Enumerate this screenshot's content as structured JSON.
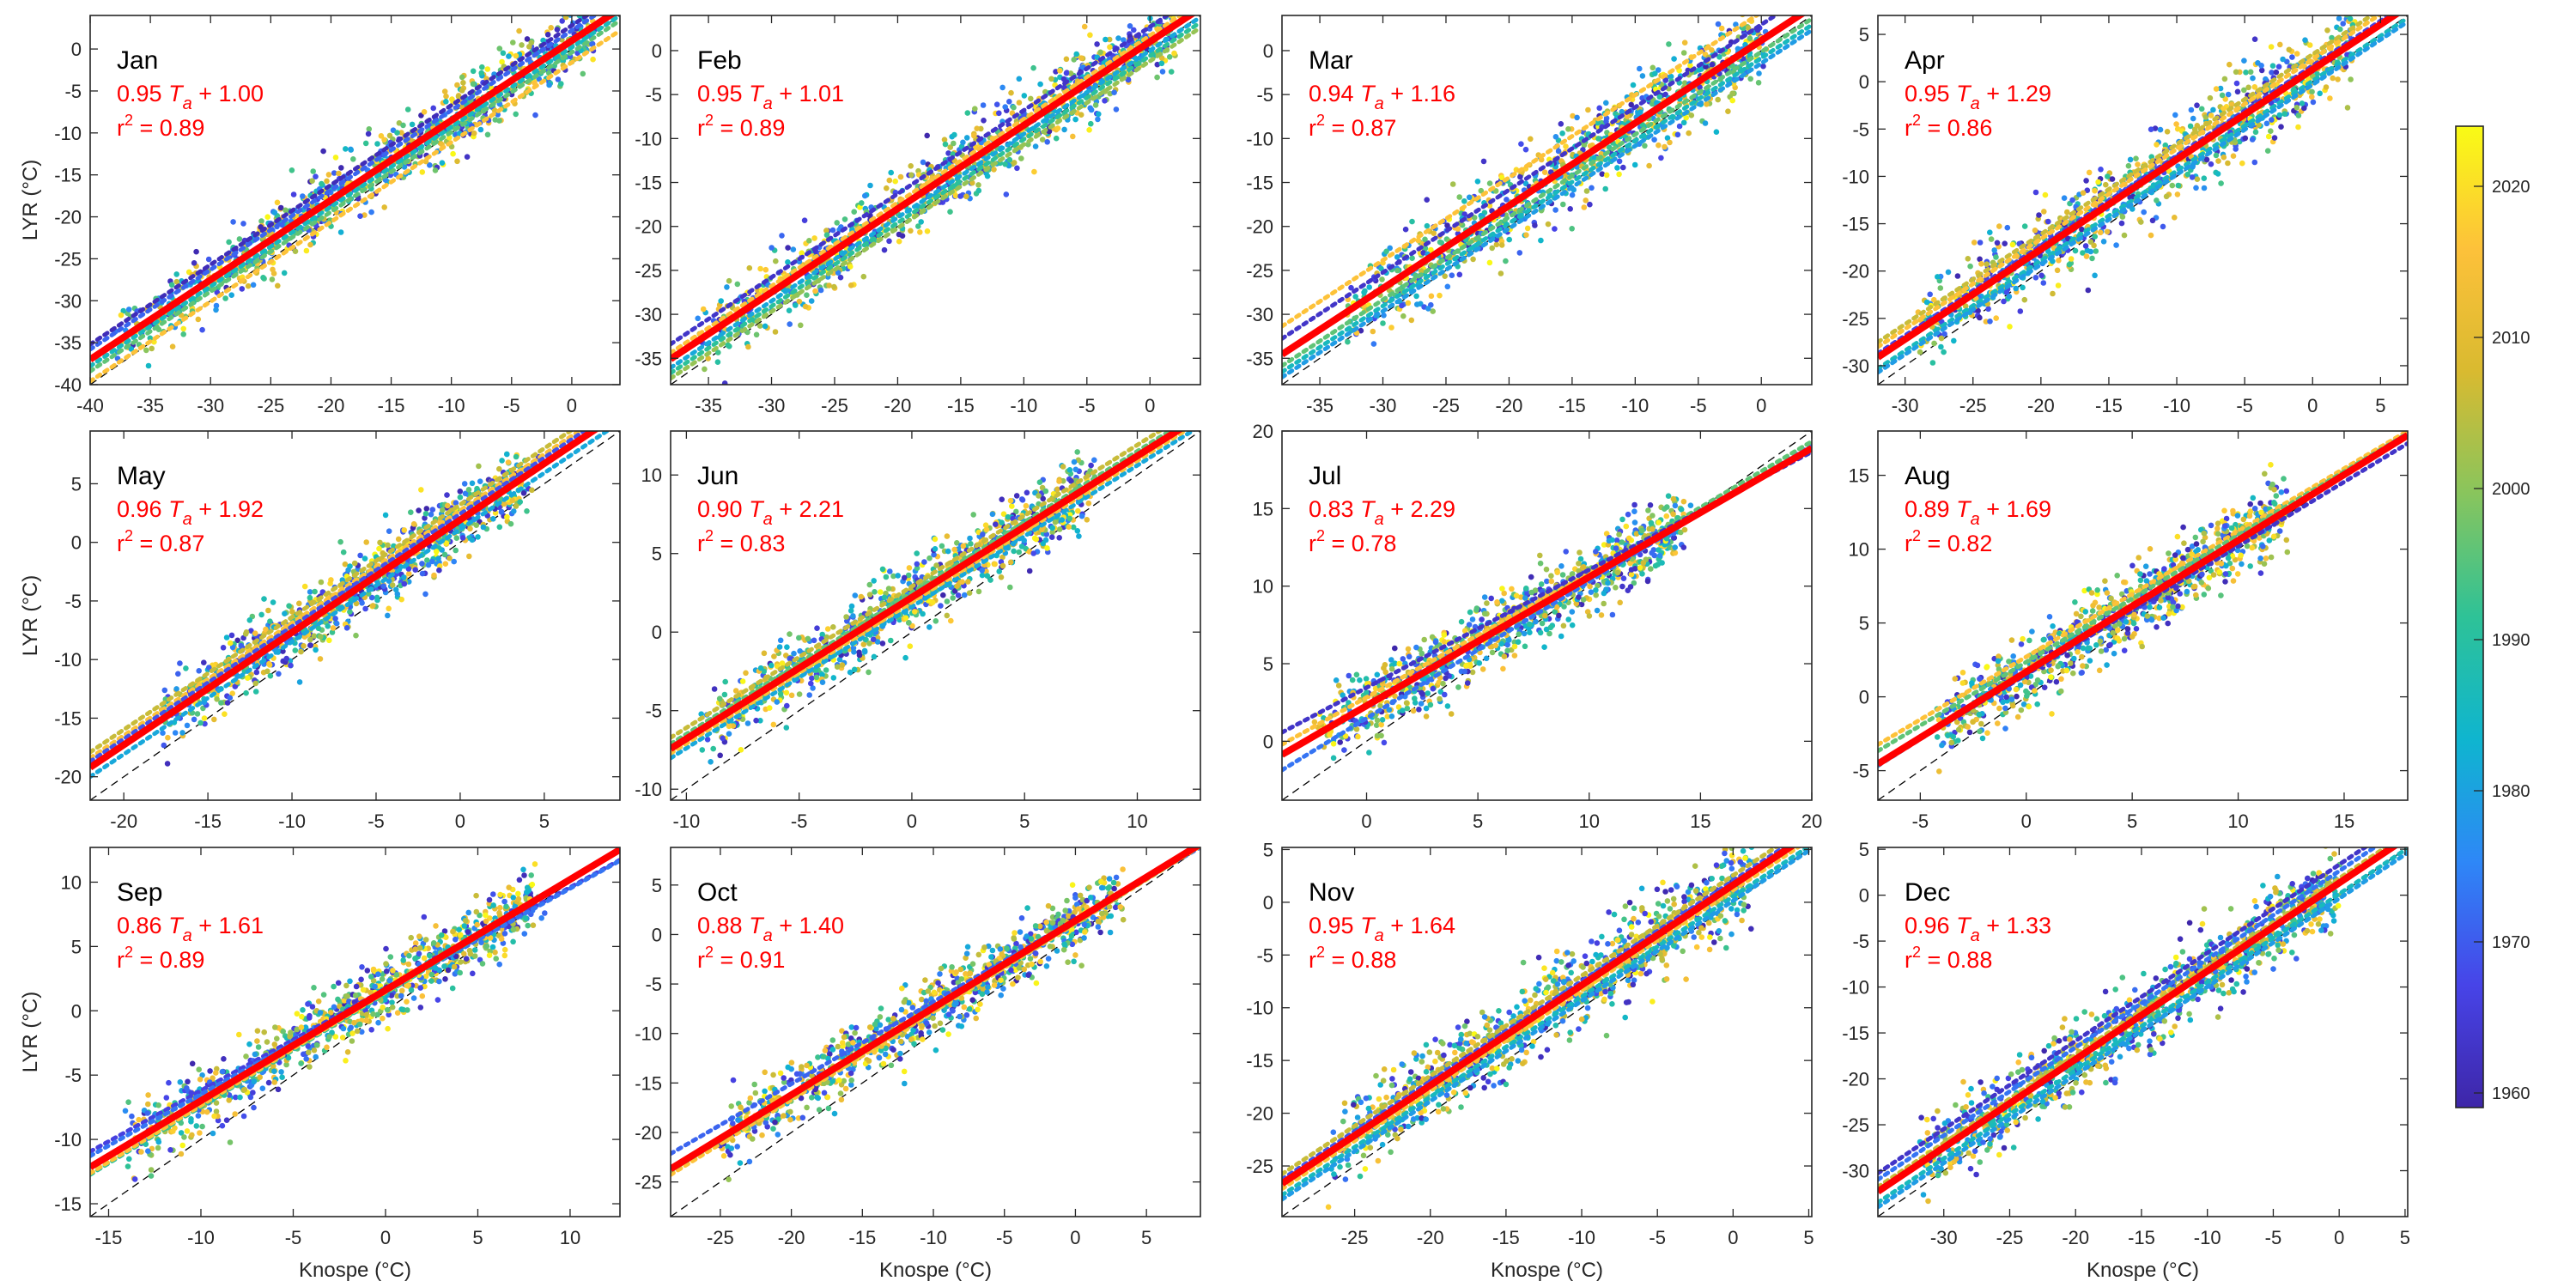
{
  "chart_data": {
    "type": "scatter",
    "title": "",
    "xlabel": "Knospe (°C)",
    "ylabel": "LYR (°C)",
    "layout": "3x4 grid of monthly scatter panels with shared colorbar on the right",
    "reference_line": "1:1 dashed black line",
    "regression_line_color": "#ff0000",
    "per_decade_fit_lines": "dotted, colored by decade",
    "colorbar": {
      "label": "",
      "range": [
        1958,
        2023
      ],
      "ticks": [
        1960,
        1970,
        1980,
        1990,
        2000,
        2010,
        2020
      ],
      "colormap": "parula",
      "colormap_stops": [
        "#3e26a8",
        "#4744e8",
        "#2e87f7",
        "#0fb5cf",
        "#2ec297",
        "#88c55d",
        "#d9ba30",
        "#fdc13a",
        "#f9fb15"
      ]
    },
    "panels": [
      {
        "month": "Jan",
        "slope": 0.95,
        "intercept": 1.0,
        "r2": 0.89,
        "eq_text": "0.95 T",
        "eq_sub": "a",
        "eq_rest": " + 1.00",
        "r2_text": "= 0.89",
        "xlim": [
          -40,
          4
        ],
        "ylim": [
          -40,
          4
        ],
        "xticks": [
          -40,
          -35,
          -30,
          -25,
          -20,
          -15,
          -10,
          -5,
          0
        ],
        "yticks": [
          -40,
          -35,
          -30,
          -25,
          -20,
          -15,
          -10,
          -5,
          0
        ],
        "scatter_x_range": [
          -38,
          2
        ],
        "scatter_spread": 2.2,
        "decade_lines": [
          {
            "year": 1960,
            "dy": 1.8
          },
          {
            "year": 1970,
            "dy": 1.2
          },
          {
            "year": 1985,
            "dy": -0.8
          },
          {
            "year": 1995,
            "dy": -1.4
          },
          {
            "year": 2015,
            "dy": -2.6
          }
        ]
      },
      {
        "month": "Feb",
        "slope": 0.95,
        "intercept": 1.01,
        "r2": 0.89,
        "eq_text": "0.95 T",
        "eq_sub": "a",
        "eq_rest": " + 1.01",
        "r2_text": "= 0.89",
        "xlim": [
          -38,
          4
        ],
        "ylim": [
          -38,
          4
        ],
        "xticks": [
          -35,
          -30,
          -25,
          -20,
          -15,
          -10,
          -5,
          0
        ],
        "yticks": [
          -35,
          -30,
          -25,
          -20,
          -15,
          -10,
          -5,
          0
        ],
        "scatter_x_range": [
          -36,
          2
        ],
        "scatter_spread": 2.2,
        "decade_lines": [
          {
            "year": 1962,
            "dy": 1.7
          },
          {
            "year": 2015,
            "dy": 0.7
          },
          {
            "year": 1980,
            "dy": -1.0
          },
          {
            "year": 1990,
            "dy": -1.6
          },
          {
            "year": 2000,
            "dy": -2.2
          }
        ]
      },
      {
        "month": "Mar",
        "slope": 0.94,
        "intercept": 1.16,
        "r2": 0.87,
        "eq_text": "0.94 T",
        "eq_sub": "a",
        "eq_rest": " + 1.16",
        "r2_text": "= 0.87",
        "xlim": [
          -38,
          4
        ],
        "ylim": [
          -38,
          4
        ],
        "xticks": [
          -35,
          -30,
          -25,
          -20,
          -15,
          -10,
          -5,
          0
        ],
        "yticks": [
          -35,
          -30,
          -25,
          -20,
          -15,
          -10,
          -5,
          0
        ],
        "scatter_x_range": [
          -33,
          0
        ],
        "scatter_spread": 2.3,
        "decade_lines": [
          {
            "year": 2015,
            "dy": 3.2
          },
          {
            "year": 1962,
            "dy": 1.8
          },
          {
            "year": 1995,
            "dy": -1.3
          },
          {
            "year": 1985,
            "dy": -2.0
          },
          {
            "year": 1978,
            "dy": -2.6
          }
        ]
      },
      {
        "month": "Apr",
        "slope": 0.95,
        "intercept": 1.29,
        "r2": 0.86,
        "eq_text": "0.95 T",
        "eq_sub": "a",
        "eq_rest": " + 1.29",
        "r2_text": "= 0.86",
        "xlim": [
          -32,
          7
        ],
        "ylim": [
          -32,
          7
        ],
        "xticks": [
          -30,
          -25,
          -20,
          -15,
          -10,
          -5,
          0,
          5
        ],
        "yticks": [
          -30,
          -25,
          -20,
          -15,
          -10,
          -5,
          0,
          5
        ],
        "scatter_x_range": [
          -29,
          3
        ],
        "scatter_spread": 2.2,
        "decade_lines": [
          {
            "year": 2005,
            "dy": 1.6
          },
          {
            "year": 2015,
            "dy": 1.1
          },
          {
            "year": 1965,
            "dy": 0.4
          },
          {
            "year": 1985,
            "dy": -1.2
          },
          {
            "year": 1978,
            "dy": -1.6
          }
        ]
      },
      {
        "month": "May",
        "slope": 0.96,
        "intercept": 1.92,
        "r2": 0.87,
        "eq_text": "0.96 T",
        "eq_sub": "a",
        "eq_rest": " + 1.92",
        "r2_text": "= 0.87",
        "xlim": [
          -22,
          9.5
        ],
        "ylim": [
          -22,
          9.5
        ],
        "xticks": [
          -20,
          -15,
          -10,
          -5,
          0,
          5
        ],
        "yticks": [
          -20,
          -15,
          -10,
          -5,
          0,
          5
        ],
        "scatter_x_range": [
          -18,
          4
        ],
        "scatter_spread": 1.5,
        "decade_lines": [
          {
            "year": 2005,
            "dy": 1.3
          },
          {
            "year": 2015,
            "dy": 0.8
          },
          {
            "year": 1968,
            "dy": 0.5
          },
          {
            "year": 1980,
            "dy": -0.8
          }
        ]
      },
      {
        "month": "Jun",
        "slope": 0.9,
        "intercept": 2.21,
        "r2": 0.83,
        "eq_text": "0.90 T",
        "eq_sub": "a",
        "eq_rest": " + 2.21",
        "r2_text": "= 0.83",
        "xlim": [
          -10.7,
          12.8
        ],
        "ylim": [
          -10.7,
          12.8
        ],
        "xticks": [
          -10,
          -5,
          0,
          5,
          10
        ],
        "yticks": [
          -10,
          -5,
          0,
          5,
          10
        ],
        "scatter_x_range": [
          -9,
          8
        ],
        "scatter_spread": 1.1,
        "decade_lines": [
          {
            "year": 2005,
            "dy": 0.7
          },
          {
            "year": 1995,
            "dy": 0.3
          },
          {
            "year": 1980,
            "dy": -0.6
          },
          {
            "year": 2015,
            "dy": -0.3
          }
        ]
      },
      {
        "month": "Jul",
        "slope": 0.83,
        "intercept": 2.29,
        "r2": 0.78,
        "eq_text": "0.83 T",
        "eq_sub": "a",
        "eq_rest": " + 2.29",
        "r2_text": "= 0.78",
        "xlim": [
          -3.8,
          20
        ],
        "ylim": [
          -3.8,
          20
        ],
        "xticks": [
          0,
          5,
          10,
          15,
          20
        ],
        "yticks": [
          0,
          5,
          10,
          15,
          20
        ],
        "scatter_x_range": [
          -2,
          14
        ],
        "scatter_spread": 1.1,
        "decade_lines": [
          {
            "year": 1972,
            "dy": -0.4,
            "ds": 0.05
          },
          {
            "year": 1995,
            "dy": 0.2,
            "ds": 0.02
          },
          {
            "year": 2015,
            "dy": 0.3,
            "ds": -0.03
          },
          {
            "year": 1962,
            "dy": 0.6,
            "ds": -0.07
          }
        ]
      },
      {
        "month": "Aug",
        "slope": 0.89,
        "intercept": 1.69,
        "r2": 0.82,
        "eq_text": "0.89 T",
        "eq_sub": "a",
        "eq_rest": " + 1.69",
        "r2_text": "= 0.82",
        "xlim": [
          -7,
          18
        ],
        "ylim": [
          -7,
          18
        ],
        "xticks": [
          -5,
          0,
          5,
          10,
          15
        ],
        "yticks": [
          -5,
          0,
          5,
          10,
          15
        ],
        "scatter_x_range": [
          -4,
          12
        ],
        "scatter_spread": 1.2,
        "decade_lines": [
          {
            "year": 2015,
            "dy": 0.8,
            "ds": -0.04
          },
          {
            "year": 1995,
            "dy": 0.5,
            "ds": -0.03
          },
          {
            "year": 1978,
            "dy": 0.0,
            "ds": 0.01
          },
          {
            "year": 1962,
            "dy": -0.3,
            "ds": -0.02
          }
        ]
      },
      {
        "month": "Sep",
        "slope": 0.86,
        "intercept": 1.61,
        "r2": 0.89,
        "eq_text": "0.86 T",
        "eq_sub": "a",
        "eq_rest": " + 1.61",
        "r2_text": "= 0.89",
        "xlim": [
          -16,
          12.7
        ],
        "ylim": [
          -16,
          12.7
        ],
        "xticks": [
          -15,
          -10,
          -5,
          0,
          5,
          10
        ],
        "yticks": [
          -15,
          -10,
          -5,
          0,
          5,
          10
        ],
        "scatter_x_range": [
          -14,
          8
        ],
        "scatter_spread": 1.2,
        "decade_lines": [
          {
            "year": 1965,
            "dy": 0.2,
            "ds": -0.07
          },
          {
            "year": 1972,
            "dy": 0.0,
            "ds": -0.06
          },
          {
            "year": 1990,
            "dy": -0.3,
            "ds": 0.02
          },
          {
            "year": 2015,
            "dy": -0.2,
            "ds": 0.02
          }
        ]
      },
      {
        "month": "Oct",
        "slope": 0.88,
        "intercept": 1.4,
        "r2": 0.91,
        "eq_text": "0.88 T",
        "eq_sub": "a",
        "eq_rest": " + 1.40",
        "r2_text": "= 0.91",
        "xlim": [
          -28.5,
          8.8
        ],
        "ylim": [
          -28.5,
          8.8
        ],
        "xticks": [
          -25,
          -20,
          -15,
          -10,
          -5,
          0,
          5
        ],
        "yticks": [
          -25,
          -20,
          -15,
          -10,
          -5,
          0,
          5
        ],
        "scatter_x_range": [
          -25,
          3
        ],
        "scatter_spread": 1.6,
        "decade_lines": [
          {
            "year": 1970,
            "dy": 0.6,
            "ds": -0.05
          },
          {
            "year": 2015,
            "dy": -0.4,
            "ds": 0.01
          },
          {
            "year": 2000,
            "dy": -0.2,
            "ds": 0.0
          }
        ]
      },
      {
        "month": "Nov",
        "slope": 0.95,
        "intercept": 1.64,
        "r2": 0.88,
        "eq_text": "0.95 T",
        "eq_sub": "a",
        "eq_rest": " + 1.64",
        "r2_text": "= 0.88",
        "xlim": [
          -29.8,
          5.2
        ],
        "ylim": [
          -29.8,
          5.2
        ],
        "xticks": [
          -25,
          -20,
          -15,
          -10,
          -5,
          0,
          5
        ],
        "yticks": [
          -25,
          -20,
          -15,
          -10,
          -5,
          0,
          5
        ],
        "scatter_x_range": [
          -27,
          1
        ],
        "scatter_spread": 2.0,
        "decade_lines": [
          {
            "year": 2005,
            "dy": 0.9
          },
          {
            "year": 1968,
            "dy": 0.4
          },
          {
            "year": 2015,
            "dy": -0.5
          },
          {
            "year": 1985,
            "dy": -1.1
          },
          {
            "year": 1978,
            "dy": -1.5
          }
        ]
      },
      {
        "month": "Dec",
        "slope": 0.96,
        "intercept": 1.33,
        "r2": 0.88,
        "eq_text": "0.96 T",
        "eq_sub": "a",
        "eq_rest": " + 1.33",
        "r2_text": "= 0.88",
        "xlim": [
          -35,
          5.2
        ],
        "ylim": [
          -35,
          5.2
        ],
        "xticks": [
          -30,
          -25,
          -20,
          -15,
          -10,
          -5,
          0,
          5
        ],
        "yticks": [
          -30,
          -25,
          -20,
          -15,
          -10,
          -5,
          0,
          5
        ],
        "scatter_x_range": [
          -32,
          0
        ],
        "scatter_spread": 2.1,
        "decade_lines": [
          {
            "year": 1962,
            "dy": 2.0
          },
          {
            "year": 1972,
            "dy": 1.3
          },
          {
            "year": 2005,
            "dy": 0.5
          },
          {
            "year": 1985,
            "dy": -1.2
          },
          {
            "year": 1978,
            "dy": -1.7
          }
        ]
      }
    ]
  }
}
